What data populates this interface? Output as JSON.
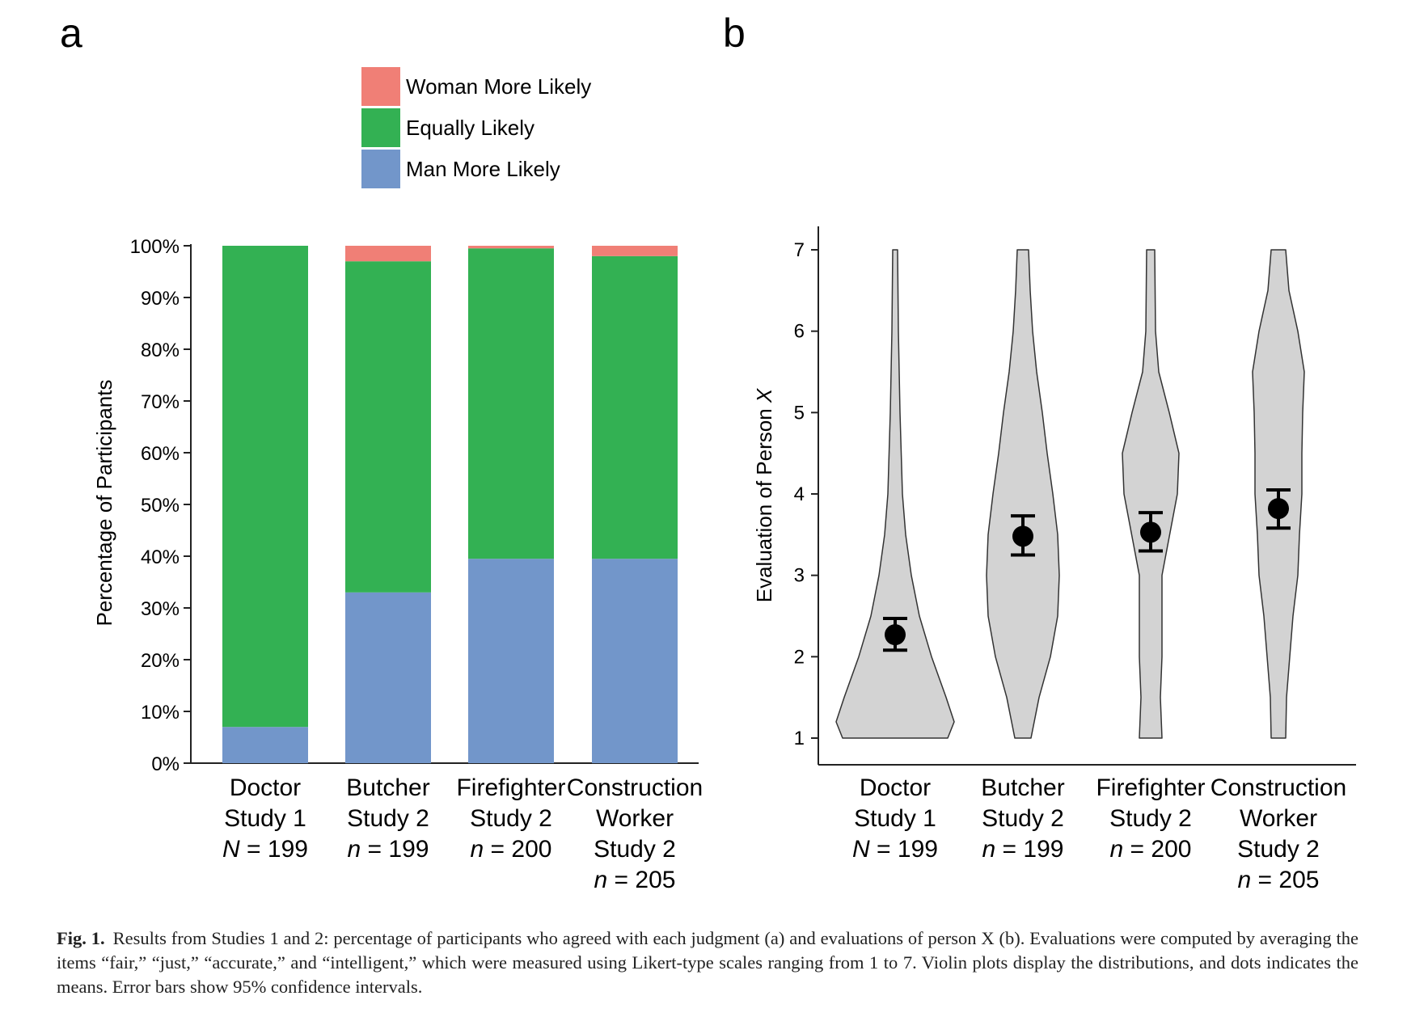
{
  "panel_a": {
    "letter": "a",
    "legend": [
      {
        "label": "Woman More Likely",
        "color": "#f07f76"
      },
      {
        "label": "Equally Likely",
        "color": "#33b153"
      },
      {
        "label": "Man More Likely",
        "color": "#7296ca"
      }
    ]
  },
  "panel_b": {
    "letter": "b"
  },
  "caption": {
    "label": "Fig. 1.",
    "text": "Results from Studies 1 and 2: percentage of participants who agreed with each judgment (a) and evaluations of person X (b). Evaluations were computed by averaging the items “fair,” “just,” “accurate,” and “intelligent,” which were measured using Likert-type scales ranging from 1 to 7. Violin plots display the distributions, and dots indicates the means. Error bars show 95% confidence intervals."
  },
  "chart_data": [
    {
      "type": "bar",
      "stacked": true,
      "ylabel": "Percentage of Participants",
      "ylim": [
        0,
        100
      ],
      "yticks": [
        "0%",
        "10%",
        "20%",
        "30%",
        "40%",
        "50%",
        "60%",
        "70%",
        "80%",
        "90%",
        "100%"
      ],
      "grid": false,
      "legend_position": "top",
      "categories": [
        [
          "Doctor",
          "Study 1",
          "N = 199"
        ],
        [
          "Butcher",
          "Study 2",
          "n = 199"
        ],
        [
          "Firefighter",
          "Study 2",
          "n = 200"
        ],
        [
          "Construction",
          "Worker",
          "Study 2",
          "n = 205"
        ]
      ],
      "series": [
        {
          "name": "Man More Likely",
          "color": "#7296ca",
          "values": [
            7,
            33,
            39.5,
            39.5
          ]
        },
        {
          "name": "Equally Likely",
          "color": "#33b153",
          "values": [
            93,
            64,
            60,
            58.5
          ]
        },
        {
          "name": "Woman More Likely",
          "color": "#f07f76",
          "values": [
            0,
            3,
            0.5,
            2
          ]
        }
      ]
    },
    {
      "type": "violin",
      "ylabel": "Evaluation of Person X",
      "ylim": [
        1,
        7
      ],
      "yticks": [
        "1",
        "2",
        "3",
        "4",
        "5",
        "6",
        "7"
      ],
      "grid": false,
      "categories": [
        [
          "Doctor",
          "Study 1",
          "N = 199"
        ],
        [
          "Butcher",
          "Study 2",
          "n = 199"
        ],
        [
          "Firefighter",
          "Study 2",
          "n = 200"
        ],
        [
          "Construction",
          "Worker",
          "Study 2",
          "n = 205"
        ]
      ],
      "violin_color": "#d3d3d3",
      "groups": [
        {
          "mean": 2.27,
          "ci_low": 2.08,
          "ci_high": 2.47,
          "density": [
            [
              1,
              0.65
            ],
            [
              1.2,
              0.73
            ],
            [
              1.5,
              0.63
            ],
            [
              2,
              0.45
            ],
            [
              2.5,
              0.3
            ],
            [
              3,
              0.2
            ],
            [
              3.5,
              0.13
            ],
            [
              4,
              0.09
            ],
            [
              5,
              0.06
            ],
            [
              6,
              0.04
            ],
            [
              7,
              0.03
            ]
          ]
        },
        {
          "mean": 3.48,
          "ci_low": 3.25,
          "ci_high": 3.73,
          "density": [
            [
              1,
              0.1
            ],
            [
              1.5,
              0.2
            ],
            [
              2,
              0.34
            ],
            [
              2.5,
              0.43
            ],
            [
              3,
              0.45
            ],
            [
              3.5,
              0.43
            ],
            [
              4,
              0.37
            ],
            [
              4.5,
              0.3
            ],
            [
              5,
              0.24
            ],
            [
              5.5,
              0.17
            ],
            [
              6,
              0.12
            ],
            [
              6.5,
              0.09
            ],
            [
              7,
              0.07
            ]
          ]
        },
        {
          "mean": 3.53,
          "ci_low": 3.3,
          "ci_high": 3.77,
          "density": [
            [
              1,
              0.14
            ],
            [
              1.5,
              0.12
            ],
            [
              2,
              0.14
            ],
            [
              3,
              0.14
            ],
            [
              4,
              0.33
            ],
            [
              4.5,
              0.35
            ],
            [
              5,
              0.23
            ],
            [
              5.5,
              0.1
            ],
            [
              6,
              0.06
            ],
            [
              7,
              0.05
            ]
          ]
        },
        {
          "mean": 3.82,
          "ci_low": 3.58,
          "ci_high": 4.05,
          "density": [
            [
              1,
              0.09
            ],
            [
              1.5,
              0.1
            ],
            [
              2,
              0.14
            ],
            [
              2.5,
              0.18
            ],
            [
              3,
              0.24
            ],
            [
              3.5,
              0.26
            ],
            [
              4,
              0.29
            ],
            [
              4.5,
              0.29
            ],
            [
              5,
              0.3
            ],
            [
              5.5,
              0.32
            ],
            [
              6,
              0.24
            ],
            [
              6.5,
              0.13
            ],
            [
              7,
              0.09
            ]
          ]
        }
      ]
    }
  ]
}
